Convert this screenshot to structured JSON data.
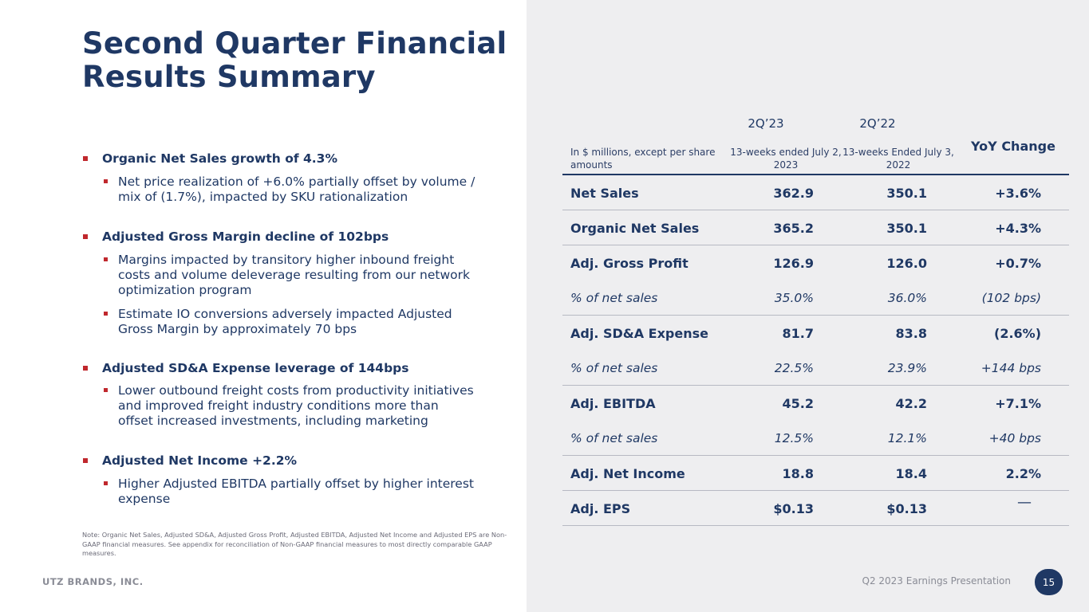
{
  "title": "Second Quarter Financial Results Summary",
  "bullets": [
    {
      "text": "Organic Net Sales growth of 4.3%",
      "subs": [
        "Net price realization of +6.0% partially offset by volume / mix of (1.7%), impacted by SKU rationalization"
      ]
    },
    {
      "text": "Adjusted Gross Margin decline of 102bps",
      "subs": [
        "Margins impacted by transitory higher inbound freight costs and volume deleverage resulting from our network optimization program",
        "Estimate IO conversions adversely impacted Adjusted Gross Margin by approximately 70 bps"
      ]
    },
    {
      "text": "Adjusted SD&A Expense leverage of 144bps",
      "subs": [
        "Lower outbound freight costs from productivity initiatives and improved freight industry conditions more than offset increased investments, including marketing"
      ]
    },
    {
      "text": "Adjusted Net Income +2.2%",
      "subs": [
        "Higher Adjusted EBITDA partially offset by higher interest expense"
      ]
    }
  ],
  "note": "Note:  Organic Net Sales, Adjusted SD&A, Adjusted Gross Profit, Adjusted EBITDA, Adjusted Net Income and Adjusted EPS are Non-GAAP financial measures. See appendix for reconciliation  of Non-GAAP financial measures to most directly comparable  GAAP measures.",
  "table": {
    "header": {
      "description": "In $ millions, except per share amounts",
      "col1_period": "2Q’23",
      "col1_sub": "13-weeks ended July 2, 2023",
      "col2_period": "2Q’22",
      "col2_sub": "13-weeks Ended July 3, 2022",
      "col3": "YoY Change"
    },
    "rows": [
      {
        "label": "Net Sales",
        "v1": "362.9",
        "v2": "350.1",
        "v3": "+3.6%"
      },
      {
        "label": "Organic Net Sales",
        "v1": "365.2",
        "v2": "350.1",
        "v3": "+4.3%"
      },
      {
        "label": "Adj. Gross Profit",
        "v1": "126.9",
        "v2": "126.0",
        "v3": "+0.7%"
      },
      {
        "label": "% of net sales",
        "v1": "35.0%",
        "v2": "36.0%",
        "v3": "(102 bps)"
      },
      {
        "label": "Adj. SD&A Expense",
        "v1": "81.7",
        "v2": "83.8",
        "v3": "(2.6%)"
      },
      {
        "label": "% of net sales",
        "v1": "22.5%",
        "v2": "23.9%",
        "v3": "+144 bps"
      },
      {
        "label": "Adj. EBITDA",
        "v1": "45.2",
        "v2": "42.2",
        "v3": "+7.1%"
      },
      {
        "label": "% of net sales",
        "v1": "12.5%",
        "v2": "12.1%",
        "v3": "+40 bps"
      },
      {
        "label": "Adj. Net Income",
        "v1": "18.8",
        "v2": "18.4",
        "v3": "2.2%"
      },
      {
        "label": "Adj. EPS",
        "v1": "$0.13",
        "v2": "$0.13",
        "v3": "—"
      }
    ]
  },
  "footer": {
    "company": "UTZ BRANDS, INC.",
    "presentation": "Q2 2023 Earnings Presentation",
    "page": "15"
  }
}
